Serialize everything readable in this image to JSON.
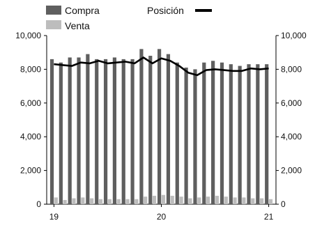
{
  "chart_data": {
    "type": "bar",
    "title": "",
    "xlabel": "",
    "ylabel": "",
    "ylim": [
      0,
      10000
    ],
    "yticks": [
      0,
      2000,
      4000,
      6000,
      8000,
      10000
    ],
    "ytick_labels": [
      "0",
      "2,000",
      "4,000",
      "6,000",
      "8,000",
      "10,000"
    ],
    "xtick_labels": [
      {
        "label": "19",
        "index": 0
      },
      {
        "label": "20",
        "index": 12
      },
      {
        "label": "21",
        "index": 24
      }
    ],
    "grid": false,
    "legend_placement": "top-left",
    "series": [
      {
        "name": "Compra",
        "kind": "bar",
        "color": "#5f5f5f",
        "values": [
          8600,
          8400,
          8700,
          8700,
          8900,
          8600,
          8600,
          8700,
          8600,
          8600,
          9200,
          8800,
          9200,
          8900,
          8400,
          8100,
          8000,
          8400,
          8500,
          8400,
          8300,
          8200,
          8300,
          8300,
          8300
        ]
      },
      {
        "name": "Venta",
        "kind": "bar",
        "color": "#bdbdbd",
        "values": [
          400,
          250,
          350,
          400,
          350,
          300,
          300,
          300,
          300,
          300,
          450,
          500,
          550,
          500,
          450,
          350,
          400,
          450,
          500,
          450,
          400,
          400,
          350,
          350,
          300
        ]
      },
      {
        "name": "Posición",
        "kind": "line",
        "color": "#000000",
        "values": [
          8300,
          8250,
          8200,
          8400,
          8350,
          8500,
          8350,
          8400,
          8450,
          8350,
          8700,
          8350,
          8650,
          8500,
          8200,
          7800,
          7650,
          7950,
          8000,
          7950,
          7900,
          7900,
          8050,
          8000,
          8050
        ]
      }
    ]
  }
}
